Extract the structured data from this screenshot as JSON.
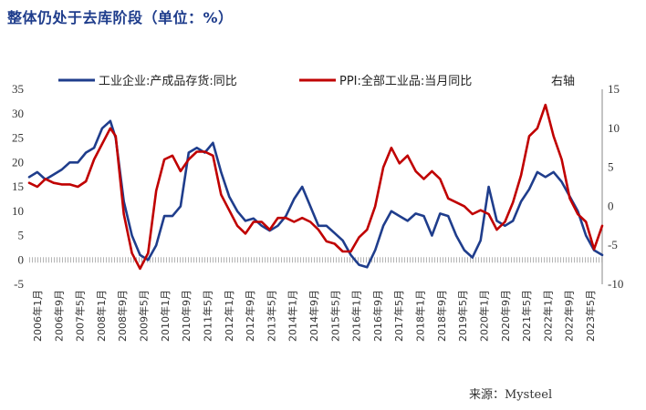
{
  "title": "整体仍处于去库阶段（单位：%）",
  "source": "来源：Mysteel",
  "chart_data": {
    "type": "line",
    "legend": {
      "placement": "top",
      "items": [
        "工业企业:产成品存货:同比",
        "PPI:全部工业品:当月同比",
        "右轴"
      ]
    },
    "y_left": {
      "ylim": [
        -5,
        35
      ],
      "ticks": [
        -5,
        0,
        5,
        10,
        15,
        20,
        25,
        30,
        35
      ]
    },
    "y_right": {
      "ylim": [
        -10,
        15
      ],
      "ticks": [
        -10,
        -5,
        0,
        5,
        10,
        15
      ]
    },
    "x_ticks": [
      "2006年1月",
      "2006年9月",
      "2007年5月",
      "2008年1月",
      "2008年9月",
      "2009年5月",
      "2010年1月",
      "2010年9月",
      "2011年5月",
      "2012年1月",
      "2012年9月",
      "2013年5月",
      "2014年1月",
      "2014年9月",
      "2015年5月",
      "2016年1月",
      "2016年9月",
      "2017年5月",
      "2018年1月",
      "2018年9月",
      "2019年5月",
      "2020年1月",
      "2020年9月",
      "2021年5月",
      "2022年1月",
      "2022年9月",
      "2023年5月"
    ],
    "x_range": [
      "2006-01",
      "2023-09"
    ],
    "zero_line": "dotted",
    "series": [
      {
        "name": "工业企业:产成品存货:同比",
        "axis": "left",
        "color": "#1f3d8c",
        "x": [
          "2006-01",
          "2006-04",
          "2006-07",
          "2006-10",
          "2007-01",
          "2007-04",
          "2007-07",
          "2007-10",
          "2008-01",
          "2008-04",
          "2008-07",
          "2008-09",
          "2008-12",
          "2009-03",
          "2009-06",
          "2009-09",
          "2009-12",
          "2010-03",
          "2010-06",
          "2010-09",
          "2010-12",
          "2011-03",
          "2011-06",
          "2011-09",
          "2011-12",
          "2012-03",
          "2012-06",
          "2012-09",
          "2012-12",
          "2013-03",
          "2013-06",
          "2013-09",
          "2013-12",
          "2014-03",
          "2014-06",
          "2014-09",
          "2014-12",
          "2015-03",
          "2015-06",
          "2015-09",
          "2015-12",
          "2016-03",
          "2016-06",
          "2016-09",
          "2016-12",
          "2017-03",
          "2017-06",
          "2017-09",
          "2017-12",
          "2018-03",
          "2018-06",
          "2018-09",
          "2018-12",
          "2019-03",
          "2019-06",
          "2019-09",
          "2019-12",
          "2020-03",
          "2020-06",
          "2020-09",
          "2020-12",
          "2021-03",
          "2021-06",
          "2021-09",
          "2021-12",
          "2022-03",
          "2022-06",
          "2022-09",
          "2022-12",
          "2023-03",
          "2023-06",
          "2023-09"
        ],
        "values": [
          17,
          18,
          16.5,
          17.5,
          18.5,
          20,
          20,
          22,
          23,
          27,
          28.5,
          25,
          12,
          5,
          1,
          0,
          3,
          9,
          9,
          11,
          22,
          23,
          22,
          24,
          18,
          13,
          10,
          8,
          8.5,
          7,
          6,
          7,
          9,
          12.5,
          15,
          11,
          7,
          7,
          5.5,
          4,
          1,
          -1,
          -1.5,
          2,
          7,
          10,
          9,
          8,
          9.5,
          9,
          5,
          9.5,
          9,
          5,
          2,
          0.5,
          4,
          15,
          8,
          7,
          8,
          12,
          14.5,
          18,
          17,
          18,
          16,
          13,
          10,
          5,
          2,
          1
        ]
      },
      {
        "name": "PPI:全部工业品:当月同比",
        "axis": "right",
        "color": "#c00000",
        "x": [
          "2006-01",
          "2006-04",
          "2006-07",
          "2006-10",
          "2007-01",
          "2007-04",
          "2007-07",
          "2007-10",
          "2008-01",
          "2008-04",
          "2008-07",
          "2008-09",
          "2008-12",
          "2009-03",
          "2009-06",
          "2009-09",
          "2009-12",
          "2010-03",
          "2010-06",
          "2010-09",
          "2010-12",
          "2011-03",
          "2011-06",
          "2011-09",
          "2011-12",
          "2012-03",
          "2012-06",
          "2012-09",
          "2012-12",
          "2013-03",
          "2013-06",
          "2013-09",
          "2013-12",
          "2014-03",
          "2014-06",
          "2014-09",
          "2014-12",
          "2015-03",
          "2015-06",
          "2015-09",
          "2015-12",
          "2016-03",
          "2016-06",
          "2016-09",
          "2016-12",
          "2017-03",
          "2017-06",
          "2017-09",
          "2017-12",
          "2018-03",
          "2018-06",
          "2018-09",
          "2018-12",
          "2019-03",
          "2019-06",
          "2019-09",
          "2019-12",
          "2020-03",
          "2020-06",
          "2020-09",
          "2020-12",
          "2021-03",
          "2021-06",
          "2021-09",
          "2021-12",
          "2022-03",
          "2022-06",
          "2022-09",
          "2022-12",
          "2023-03",
          "2023-06",
          "2023-09"
        ],
        "values": [
          3,
          2.5,
          3.5,
          3,
          2.8,
          2.8,
          2.5,
          3.2,
          6,
          8,
          10,
          9,
          -1,
          -6,
          -8,
          -6,
          2,
          6,
          6.5,
          4.5,
          6,
          7,
          7,
          6.5,
          1.5,
          -0.5,
          -2.5,
          -3.5,
          -2,
          -2,
          -3,
          -1.5,
          -1.5,
          -2,
          -1.5,
          -2,
          -3,
          -4.5,
          -4.8,
          -5.8,
          -5.8,
          -4,
          -3,
          0,
          5,
          7.5,
          5.5,
          6.5,
          4.5,
          3.5,
          4.5,
          3.5,
          1,
          0.5,
          0,
          -1,
          -0.5,
          -1,
          -3,
          -2,
          0.5,
          4,
          9,
          10,
          13,
          9,
          6,
          1,
          -1,
          -2,
          -5.5,
          -2.5
        ]
      }
    ]
  }
}
